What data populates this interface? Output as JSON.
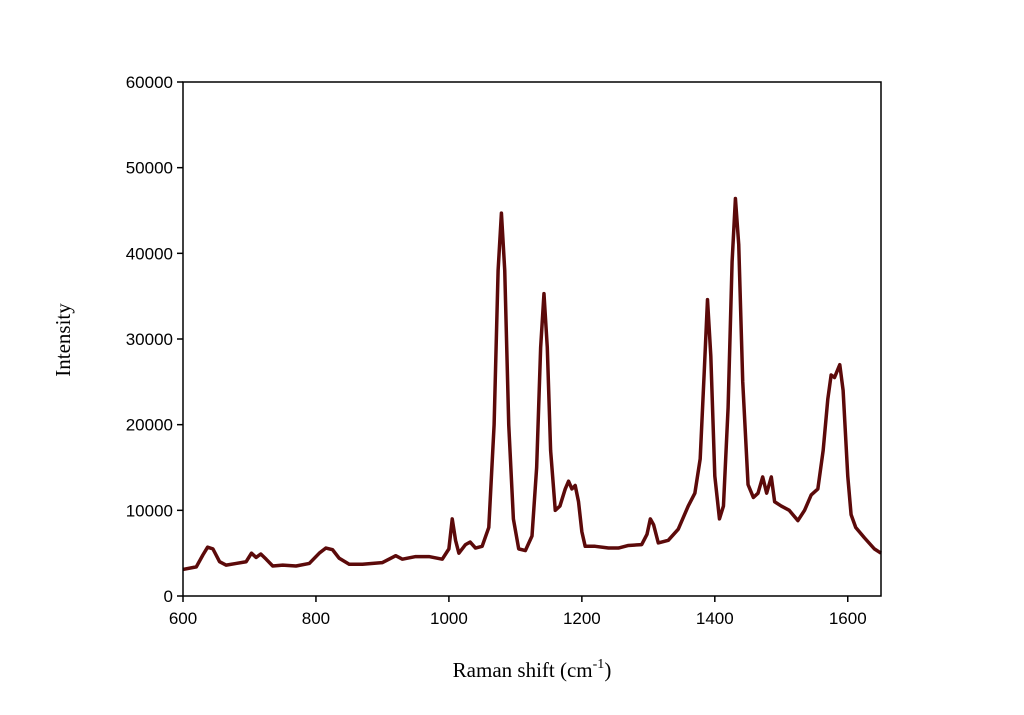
{
  "chart_data": {
    "type": "line",
    "xlabel": [
      "Raman shift (cm",
      "-1",
      ")"
    ],
    "ylabel": "Intensity",
    "xlim": [
      600,
      1650
    ],
    "ylim": [
      0,
      60000
    ],
    "xticks": [
      600,
      800,
      1000,
      1200,
      1400,
      1600
    ],
    "yticks": [
      0,
      10000,
      20000,
      30000,
      40000,
      50000,
      60000
    ],
    "series": [
      {
        "color": "#5c0a0a",
        "x": [
          600,
          620,
          630,
          637,
          645,
          655,
          665,
          680,
          695,
          703,
          710,
          717,
          725,
          735,
          750,
          770,
          790,
          805,
          815,
          825,
          835,
          850,
          870,
          900,
          915,
          920,
          930,
          950,
          970,
          990,
          1000,
          1005,
          1010,
          1015,
          1025,
          1032,
          1040,
          1050,
          1060,
          1068,
          1074,
          1079,
          1084,
          1090,
          1097,
          1105,
          1115,
          1125,
          1132,
          1138,
          1143,
          1148,
          1153,
          1160,
          1167,
          1175,
          1180,
          1185,
          1190,
          1195,
          1200,
          1205,
          1220,
          1240,
          1255,
          1270,
          1290,
          1298,
          1303,
          1308,
          1315,
          1330,
          1345,
          1360,
          1370,
          1378,
          1384,
          1389,
          1394,
          1400,
          1407,
          1413,
          1420,
          1426,
          1431,
          1436,
          1442,
          1450,
          1458,
          1465,
          1472,
          1478,
          1485,
          1490,
          1500,
          1512,
          1525,
          1535,
          1545,
          1555,
          1563,
          1570,
          1575,
          1580,
          1588,
          1593,
          1600,
          1605,
          1612,
          1625,
          1640,
          1650
        ],
        "values": [
          3100,
          3400,
          4800,
          5700,
          5500,
          4000,
          3600,
          3800,
          4000,
          5000,
          4500,
          4900,
          4300,
          3500,
          3600,
          3500,
          3800,
          5000,
          5600,
          5400,
          4400,
          3700,
          3700,
          3900,
          4500,
          4700,
          4300,
          4600,
          4600,
          4300,
          5500,
          9000,
          6500,
          5000,
          6000,
          6300,
          5600,
          5800,
          8000,
          20000,
          38000,
          44700,
          38000,
          20000,
          9000,
          5500,
          5300,
          7000,
          15000,
          29000,
          35300,
          29000,
          17000,
          10000,
          10500,
          12500,
          13400,
          12500,
          12900,
          11000,
          7500,
          5800,
          5800,
          5600,
          5600,
          5900,
          6000,
          7200,
          9000,
          8300,
          6200,
          6500,
          7800,
          10500,
          12000,
          16000,
          26000,
          34600,
          28000,
          14000,
          9000,
          10500,
          22000,
          39000,
          46400,
          41000,
          25000,
          13000,
          11500,
          12000,
          13900,
          12000,
          13900,
          11000,
          10500,
          10000,
          8800,
          10000,
          11800,
          12500,
          17000,
          23000,
          25800,
          25500,
          27000,
          24000,
          14000,
          9500,
          8000,
          6800,
          5500,
          5000
        ]
      }
    ]
  }
}
